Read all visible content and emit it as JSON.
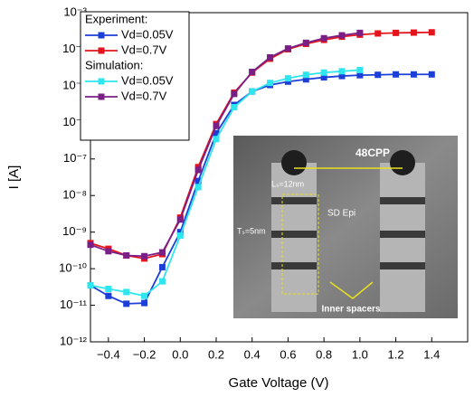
{
  "chart_data": {
    "type": "line",
    "log_y": true,
    "x_label": "Gate Voltage (V)",
    "y_label": "I [A]",
    "x": [
      -0.5,
      -0.4,
      -0.3,
      -0.2,
      -0.1,
      0.0,
      0.1,
      0.2,
      0.3,
      0.4,
      0.5,
      0.6,
      0.7,
      0.8,
      0.9,
      1.0,
      1.1,
      1.2,
      1.3,
      1.4
    ],
    "legend_titles": [
      "Experiment:",
      "Simulation:"
    ],
    "series": [
      {
        "name": "Vd=0.05V",
        "color": "#1c3fd8",
        "values": [
          3.5e-11,
          1.8e-11,
          1.1e-11,
          1.15e-11,
          1.1e-10,
          1e-09,
          2.5e-08,
          5e-07,
          3e-06,
          7e-06,
          1.05e-05,
          1.3e-05,
          1.5e-05,
          1.7e-05,
          1.85e-05,
          1.95e-05,
          2e-05,
          2.05e-05,
          2.05e-05,
          2.05e-05
        ]
      },
      {
        "name": "Vd=0.7V",
        "color": "#e3141c",
        "values": [
          5e-10,
          3.5e-10,
          2.3e-10,
          1.9e-10,
          2.5e-10,
          2.5e-09,
          6e-08,
          9e-07,
          6.5e-06,
          2.3e-05,
          5.5e-05,
          0.0001,
          0.00014,
          0.00018,
          0.00022,
          0.00025,
          0.00027,
          0.00028,
          0.000285,
          0.00029
        ]
      },
      {
        "name": "Vd=0.05V",
        "color": "#2fe6ef",
        "values": [
          3.5e-11,
          2.8e-11,
          2.3e-11,
          1.8e-11,
          4.5e-11,
          8e-10,
          1.7e-08,
          3.5e-07,
          2.6e-06,
          7e-06,
          1.2e-05,
          1.6e-05,
          2e-05,
          2.3e-05,
          2.5e-05,
          2.7e-05,
          null,
          null,
          null,
          null
        ]
      },
      {
        "name": "Vd=0.7V",
        "color": "#7a1f86",
        "values": [
          4.5e-10,
          3e-10,
          2.3e-10,
          2.2e-10,
          2.8e-10,
          2.2e-09,
          5e-08,
          8e-07,
          6e-06,
          2.4e-05,
          6e-05,
          0.000105,
          0.00015,
          0.0002,
          0.00024,
          0.00028,
          null,
          null,
          null,
          null
        ]
      }
    ],
    "xlim": [
      -0.5,
      1.6
    ],
    "xticks": [
      {
        "value": -0.4,
        "label": "−0.4"
      },
      {
        "value": -0.2,
        "label": "−0.2"
      },
      {
        "value": 0,
        "label": "0.0"
      },
      0.2,
      0.4,
      0.6,
      0.8,
      {
        "value": 1,
        "label": "1.0"
      },
      1.2,
      1.4
    ],
    "ylim": [
      1e-12,
      0.001
    ],
    "yticks": [
      {
        "value": 1e-12,
        "label": "10⁻¹²"
      },
      {
        "value": 1e-11,
        "label": "10⁻¹¹"
      },
      {
        "value": 1e-10,
        "label": "10⁻¹⁰"
      },
      {
        "value": 1e-09,
        "label": "10⁻⁹"
      },
      {
        "value": 1e-08,
        "label": "10⁻⁸"
      },
      {
        "value": 1e-07,
        "label": "10⁻⁷"
      },
      {
        "value": 1e-06,
        "label": "10⁻⁶"
      },
      {
        "value": 1e-05,
        "label": "10⁻⁵"
      },
      {
        "value": 0.0001,
        "label": "10⁻⁴"
      },
      {
        "value": 0.001,
        "label": "10⁻³"
      }
    ],
    "inset_labels": [
      "48CPP",
      "Lₛ=12nm",
      "SD Epi",
      "Tₛ=5nm",
      "Inner spacers"
    ]
  }
}
